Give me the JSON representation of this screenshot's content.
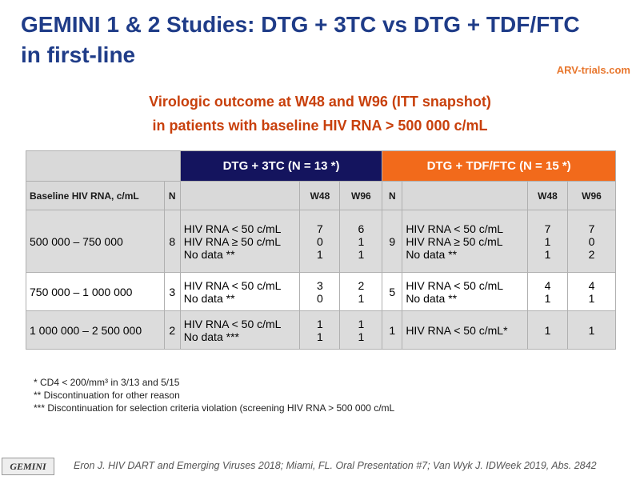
{
  "header": {
    "title": [
      "GEMINI 1 & 2 Studies: DTG + 3TC vs DTG + TDF/FTC",
      "in first-line"
    ],
    "logo": "ARV-trials.com"
  },
  "subtitle": [
    "Virologic outcome at W48 and W96 (ITT snapshot)",
    "in patients with baseline HIV RNA > 500 000 c/mL"
  ],
  "table": {
    "groups": [
      "DTG + 3TC (N = 13 *)",
      "DTG + TDF/FTC (N = 15 *)"
    ],
    "columns": {
      "baseline": "Baseline HIV RNA, c/mL",
      "n": "N",
      "w48": "W48",
      "w96": "W96"
    },
    "rows": [
      {
        "baseline": "500 000 – 750 000",
        "arms": [
          {
            "n": 8,
            "outcomes": [
              "HIV RNA < 50 c/mL",
              "HIV RNA ≥ 50 c/mL",
              "No data  **"
            ],
            "w48": [
              7,
              0,
              1
            ],
            "w96": [
              6,
              1,
              1
            ]
          },
          {
            "n": 9,
            "outcomes": [
              "HIV RNA < 50 c/mL",
              "HIV RNA ≥ 50 c/mL",
              "No data  **"
            ],
            "w48": [
              7,
              1,
              1
            ],
            "w96": [
              7,
              0,
              2
            ]
          }
        ]
      },
      {
        "baseline": "750 000 – 1 000 000",
        "arms": [
          {
            "n": 3,
            "outcomes": [
              "HIV RNA < 50 c/mL",
              "No data  **"
            ],
            "w48": [
              3,
              0
            ],
            "w96": [
              2,
              1
            ]
          },
          {
            "n": 5,
            "outcomes": [
              "HIV RNA < 50 c/mL",
              "No data  **"
            ],
            "w48": [
              4,
              1
            ],
            "w96": [
              4,
              1
            ]
          }
        ]
      },
      {
        "baseline": "1 000 000 – 2 500 000",
        "arms": [
          {
            "n": 2,
            "outcomes": [
              "HIV RNA < 50 c/mL",
              "No data  ***"
            ],
            "w48": [
              1,
              1
            ],
            "w96": [
              1,
              1
            ]
          },
          {
            "n": 1,
            "outcomes": [
              "HIV RNA < 50 c/mL*"
            ],
            "w48": [
              1
            ],
            "w96": [
              1
            ]
          }
        ]
      }
    ]
  },
  "footnotes": [
    "* CD4 < 200/mm³ in 3/13 and 5/15",
    "** Discontinuation for other reason",
    "*** Discontinuation for selection criteria violation (screening HIV RNA > 500 000 c/mL"
  ],
  "footer": {
    "badge": "GEMINI",
    "reference": "Eron J. HIV DART and Emerging Viruses 2018; Miami, FL. Oral Presentation #7; Van Wyk J. IDWeek 2019, Abs. 2842"
  }
}
